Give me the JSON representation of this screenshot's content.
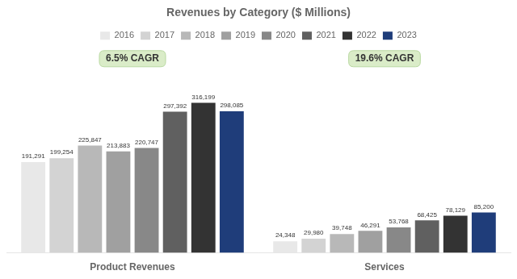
{
  "chart_data": {
    "type": "bar",
    "title": "Revenues by Category ($ Millions)",
    "categories": [
      "Product Revenues",
      "Services"
    ],
    "series": [
      {
        "name": "2016",
        "color": "#e8e8e8",
        "values": [
          191291,
          24348
        ],
        "value_labels": [
          "191,291",
          "24,348"
        ]
      },
      {
        "name": "2017",
        "color": "#d3d3d3",
        "values": [
          199254,
          29980
        ],
        "value_labels": [
          "199,254",
          "29,980"
        ]
      },
      {
        "name": "2018",
        "color": "#b8b8b8",
        "values": [
          225847,
          39748
        ],
        "value_labels": [
          "225,847",
          "39,748"
        ]
      },
      {
        "name": "2019",
        "color": "#a0a0a0",
        "values": [
          213883,
          46291
        ],
        "value_labels": [
          "213,883",
          "46,291"
        ]
      },
      {
        "name": "2020",
        "color": "#888888",
        "values": [
          220747,
          53768
        ],
        "value_labels": [
          "220,747",
          "53,768"
        ]
      },
      {
        "name": "2021",
        "color": "#606060",
        "values": [
          297392,
          68425
        ],
        "value_labels": [
          "297,392",
          "68,425"
        ]
      },
      {
        "name": "2022",
        "color": "#333333",
        "values": [
          316199,
          78129
        ],
        "value_labels": [
          "316,199",
          "78,129"
        ]
      },
      {
        "name": "2023",
        "color": "#1f3d7a",
        "values": [
          298085,
          85200
        ],
        "value_labels": [
          "298,085",
          "85,200"
        ]
      }
    ],
    "annotations": [
      "6.5% CAGR",
      "19.6% CAGR"
    ],
    "ylim": [
      0,
      380000
    ],
    "grid": false,
    "legend": "top",
    "data_labels": true,
    "tick_labels": "x"
  }
}
